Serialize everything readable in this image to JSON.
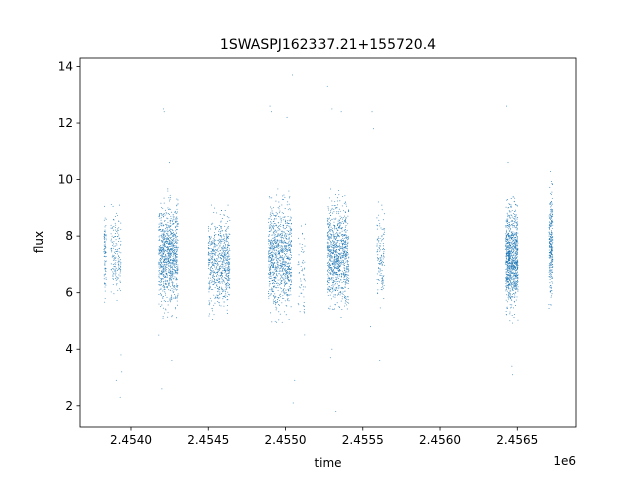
{
  "chart_data": {
    "type": "scatter",
    "title": "1SWASPJ162337.21+155720.4",
    "xlabel": "time",
    "ylabel": "flux",
    "x_offset_label": "1e6",
    "xlim": [
      2453670,
      2456880
    ],
    "ylim": [
      1.25,
      14.3
    ],
    "x_ticks": [
      2454000,
      2454500,
      2455000,
      2455500,
      2456000,
      2456500
    ],
    "x_tick_labels": [
      "2.4540",
      "2.4545",
      "2.4550",
      "2.4555",
      "2.4560",
      "2.4565"
    ],
    "y_ticks": [
      2,
      4,
      6,
      8,
      10,
      12,
      14
    ],
    "y_tick_labels": [
      "2",
      "4",
      "6",
      "8",
      "10",
      "12",
      "14"
    ],
    "grid": false,
    "marker_color": "#1f77b4",
    "segments": [
      {
        "x_start": 2453825,
        "x_end": 2453840,
        "y_low": 5.0,
        "y_high": 9.6,
        "density": 80
      },
      {
        "x_start": 2453870,
        "x_end": 2453935,
        "y_low": 5.3,
        "y_high": 9.5,
        "density": 160
      },
      {
        "x_start": 2454180,
        "x_end": 2454305,
        "y_low": 5.0,
        "y_high": 9.7,
        "density": 900
      },
      {
        "x_start": 2454500,
        "x_end": 2454640,
        "y_low": 5.0,
        "y_high": 9.2,
        "density": 650
      },
      {
        "x_start": 2454890,
        "x_end": 2455040,
        "y_low": 4.9,
        "y_high": 9.7,
        "density": 900
      },
      {
        "x_start": 2455080,
        "x_end": 2455130,
        "y_low": 4.5,
        "y_high": 8.5,
        "density": 60
      },
      {
        "x_start": 2455270,
        "x_end": 2455410,
        "y_low": 5.0,
        "y_high": 9.7,
        "density": 900
      },
      {
        "x_start": 2455590,
        "x_end": 2455640,
        "y_low": 5.2,
        "y_high": 9.4,
        "density": 130
      },
      {
        "x_start": 2456425,
        "x_end": 2456505,
        "y_low": 4.9,
        "y_high": 9.5,
        "density": 900
      },
      {
        "x_start": 2456705,
        "x_end": 2456730,
        "y_low": 5.3,
        "y_high": 10.3,
        "density": 260
      }
    ],
    "outliers": [
      {
        "x": 2453905,
        "y": 2.9
      },
      {
        "x": 2453930,
        "y": 2.3
      },
      {
        "x": 2453940,
        "y": 3.2
      },
      {
        "x": 2453935,
        "y": 3.8
      },
      {
        "x": 2454210,
        "y": 12.5
      },
      {
        "x": 2454215,
        "y": 12.4
      },
      {
        "x": 2454200,
        "y": 2.6
      },
      {
        "x": 2454250,
        "y": 10.6
      },
      {
        "x": 2454265,
        "y": 3.6
      },
      {
        "x": 2454180,
        "y": 4.5
      },
      {
        "x": 2454900,
        "y": 12.6
      },
      {
        "x": 2454910,
        "y": 12.4
      },
      {
        "x": 2455010,
        "y": 12.2
      },
      {
        "x": 2455045,
        "y": 13.7
      },
      {
        "x": 2455050,
        "y": 2.1
      },
      {
        "x": 2455060,
        "y": 2.9
      },
      {
        "x": 2455270,
        "y": 13.3
      },
      {
        "x": 2455300,
        "y": 12.5
      },
      {
        "x": 2455360,
        "y": 12.4
      },
      {
        "x": 2455290,
        "y": 3.7
      },
      {
        "x": 2455300,
        "y": 4.0
      },
      {
        "x": 2455325,
        "y": 1.8
      },
      {
        "x": 2455560,
        "y": 12.4
      },
      {
        "x": 2455570,
        "y": 11.8
      },
      {
        "x": 2455610,
        "y": 3.6
      },
      {
        "x": 2455550,
        "y": 4.8
      },
      {
        "x": 2456430,
        "y": 12.6
      },
      {
        "x": 2456440,
        "y": 10.6
      },
      {
        "x": 2456470,
        "y": 3.1
      },
      {
        "x": 2456465,
        "y": 3.4
      }
    ]
  }
}
